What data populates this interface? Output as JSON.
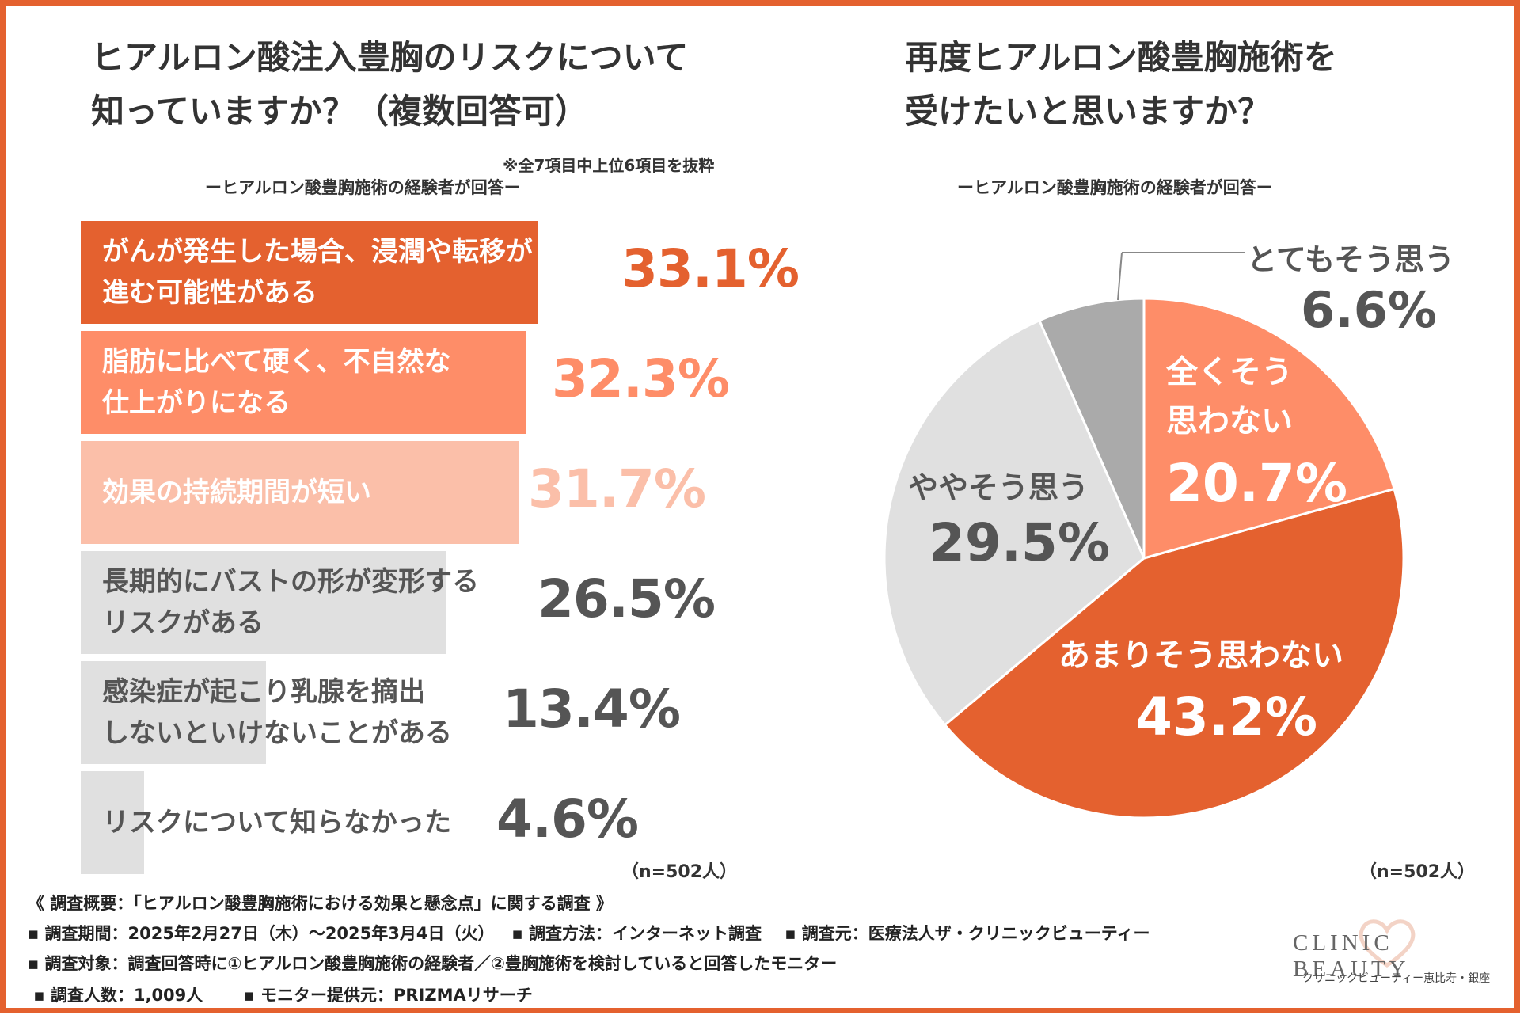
{
  "left": {
    "title_line1": "ヒアルロン酸注入豊胸のリスクについて",
    "title_line2": "知っていますか？（複数回答可）",
    "note": "※全7項目中上位6項目を抜粋",
    "subtitle": "ーヒアルロン酸豊胸施術の経験者が回答ー",
    "n_label": "（n=502人）"
  },
  "right": {
    "title_line1": "再度ヒアルロン酸豊胸施術を",
    "title_line2": "受けたいと思いますか？",
    "subtitle": "ーヒアルロン酸豊胸施術の経験者が回答ー",
    "n_label": "（n=502人）"
  },
  "chart_data": [
    {
      "type": "bar",
      "orientation": "horizontal",
      "title": "ヒアルロン酸注入豊胸のリスクについて知っていますか？（複数回答可）",
      "categories": [
        "がんが発生した場合、浸潤や転移が\n進む可能性がある",
        "脂肪に比べて硬く、不自然な\n仕上がりになる",
        "効果の持続期間が短い",
        "長期的にバストの形が変形する\nリスクがある",
        "感染症が起こり乳腺を摘出\nしないといけないことがある",
        "リスクについて知らなかった"
      ],
      "values": [
        33.1,
        32.3,
        31.7,
        26.5,
        13.4,
        4.6
      ],
      "value_labels": [
        "33.1%",
        "32.3%",
        "31.7%",
        "26.5%",
        "13.4%",
        "4.6%"
      ],
      "colors": [
        "#e4612f",
        "#fe8d68",
        "#fbbfa9",
        "#e0e0e0",
        "#e0e0e0",
        "#e0e0e0"
      ],
      "label_colors": [
        "#ffffff",
        "#ffffff",
        "#ffffff",
        "#555555",
        "#555555",
        "#555555"
      ],
      "value_colors": [
        "#e4612f",
        "#fe8d68",
        "#fbbfa9",
        "#555555",
        "#555555",
        "#555555"
      ],
      "xlim": [
        0,
        33.1
      ]
    },
    {
      "type": "pie",
      "title": "再度ヒアルロン酸豊胸施術を受けたいと思いますか？",
      "slices": [
        {
          "name": "全くそう\n思わない",
          "value": 20.7,
          "label": "20.7%",
          "color": "#fe8d68",
          "text_color": "#ffffff"
        },
        {
          "name": "あまりそう思わない",
          "value": 43.2,
          "label": "43.2%",
          "color": "#e4612f",
          "text_color": "#ffffff"
        },
        {
          "name": "ややそう思う",
          "value": 29.5,
          "label": "29.5%",
          "color": "#e0e0e0",
          "text_color": "#555555"
        },
        {
          "name": "とてもそう思う",
          "value": 6.6,
          "label": "6.6%",
          "color": "#aaaaaa",
          "text_color": "#555555"
        }
      ],
      "start": "12 o'clock",
      "direction": "clockwise"
    }
  ],
  "footer": {
    "line1": "《 調査概要：「ヒアルロン酸豊胸施術における効果と懸念点」に関する調査 》",
    "line2": "▪ 調査期間：2025年2月27日（木）～2025年3月4日（火）   ▪ 調査方法：インターネット調査    ▪ 調査元：医療法人ザ・クリニックビューティー",
    "line3": "▪ 調査対象：調査回答時に①ヒアルロン酸豊胸施術の経験者／②豊胸施術を検討していると回答したモニター",
    "line4": " ▪ 調査人数：1,009人       ▪ モニター提供元：PRIZMAリサーチ"
  },
  "logo": {
    "name": "CLINIC BEAUTY",
    "sub": "クリニックビューティー恵比寿・銀座",
    "color": "#e4612f"
  }
}
